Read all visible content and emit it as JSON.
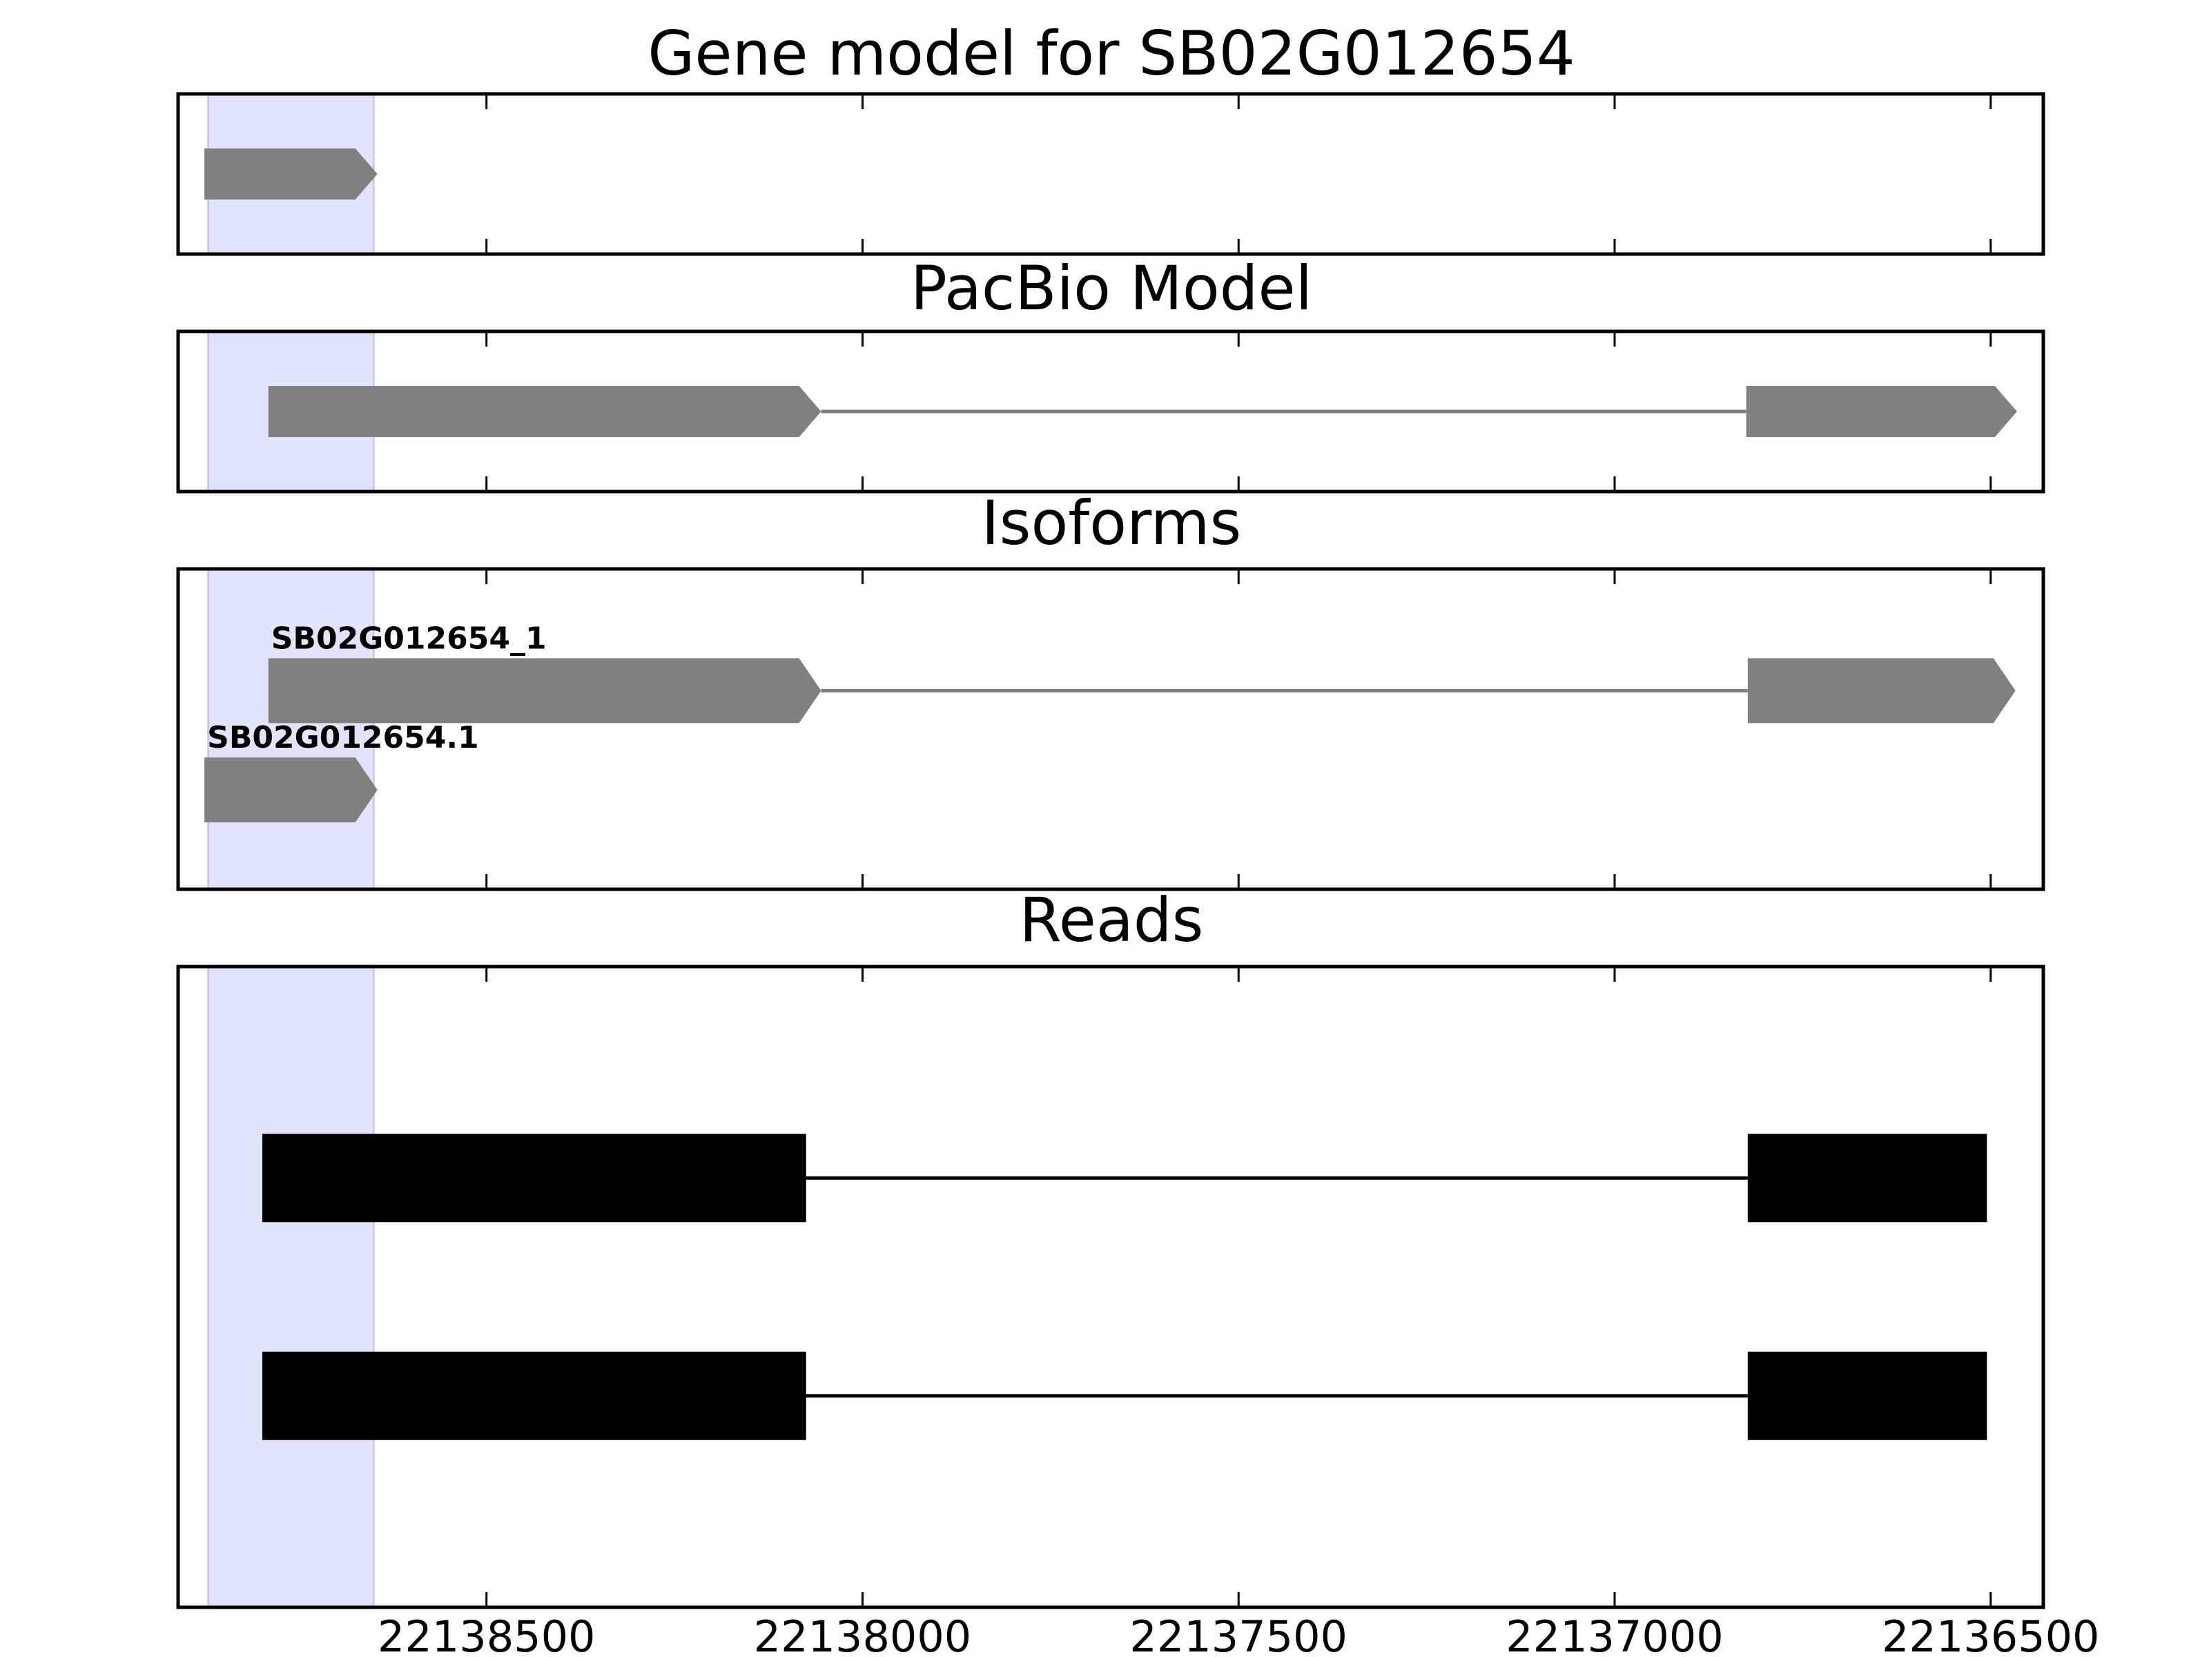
{
  "chart_data": {
    "type": "gene-model",
    "x_axis": {
      "reversed": true,
      "range": [
        22138910,
        22136430
      ],
      "ticks": [
        22138500,
        22138000,
        22137500,
        22137000,
        22136500
      ],
      "tick_labels": [
        "22138500",
        "22138000",
        "22137500",
        "22137000",
        "22136500"
      ]
    },
    "highlight": {
      "start": 22138870,
      "end": 22138650,
      "color": "#e3e3fb"
    },
    "colors": {
      "model": "#808080",
      "reads": "#000000",
      "frame": "#000000"
    },
    "panels": [
      {
        "id": "gene-model",
        "title": "Gene model for SB02G012654",
        "features": [
          {
            "label": "",
            "row": 0.5,
            "strand": "-",
            "exons": [
              [
                22138875,
                22138645
              ]
            ]
          }
        ]
      },
      {
        "id": "pacbio-model",
        "title": "PacBio Model",
        "features": [
          {
            "label": "",
            "row": 0.5,
            "strand": "-",
            "exons": [
              [
                22138790,
                22138055
              ],
              [
                22136825,
                22136465
              ]
            ]
          }
        ]
      },
      {
        "id": "isoforms",
        "title": "Isoforms",
        "features": [
          {
            "label": "SB02G012654_1",
            "row": 0.38,
            "strand": "-",
            "exons": [
              [
                22138790,
                22138055
              ],
              [
                22136823,
                22136467
              ]
            ]
          },
          {
            "label": "SB02G012654.1",
            "row": 0.69,
            "strand": "-",
            "exons": [
              [
                22138875,
                22138645
              ]
            ]
          }
        ]
      },
      {
        "id": "reads",
        "title": "Reads",
        "features": [
          {
            "label": "",
            "row": 0.33,
            "strand": "none",
            "exons": [
              [
                22138798,
                22138075
              ],
              [
                22136823,
                22136505
              ]
            ]
          },
          {
            "label": "",
            "row": 0.67,
            "strand": "none",
            "exons": [
              [
                22138798,
                22138075
              ],
              [
                22136823,
                22136505
              ]
            ]
          }
        ]
      }
    ]
  }
}
